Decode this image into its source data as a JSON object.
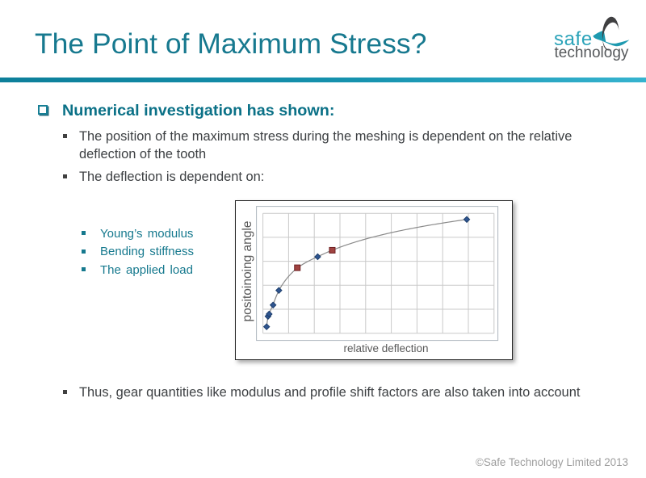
{
  "slide": {
    "title": "The Point of Maximum Stress?",
    "footer": "©Safe Technology Limited 2013"
  },
  "logo": {
    "word1": "safe",
    "word2": "technology",
    "swoosh_icon": "crescent-and-ellipse-swoosh"
  },
  "content": {
    "heading": "Numerical investigation has shown:",
    "bullets": [
      "The position of the maximum stress during the meshing is dependent on the relative deflection of the tooth",
      "The deflection is dependent on:"
    ],
    "sub_bullets": [
      "Young’s modulus",
      "Bending stiffness",
      "The applied load"
    ],
    "closing_bullet": "Thus, gear quantities like modulus and profile shift factors are also taken into account"
  },
  "chart_data": {
    "type": "line",
    "title": "",
    "xlabel": "relative deflection",
    "ylabel": "positoinoing angle",
    "xlim": [
      0,
      1
    ],
    "ylim": [
      0,
      1
    ],
    "grid": {
      "columns": 9,
      "rows": 5
    },
    "legend": "none",
    "axis_tick_labels": "none",
    "curve": "smooth logarithmic-shaped line through all points",
    "series": [
      {
        "name": "blue-diamond-points",
        "marker": "diamond",
        "fill": "#2f5590",
        "stroke": "#1e3f6d",
        "points": [
          [
            0.016,
            0.054
          ],
          [
            0.022,
            0.141
          ],
          [
            0.027,
            0.16
          ],
          [
            0.044,
            0.235
          ],
          [
            0.069,
            0.357
          ],
          [
            0.237,
            0.638
          ],
          [
            0.882,
            0.949
          ]
        ]
      },
      {
        "name": "red-square-points",
        "marker": "square",
        "fill": "#a04340",
        "stroke": "#6e2022",
        "points": [
          [
            0.149,
            0.546
          ],
          [
            0.3,
            0.692
          ]
        ]
      }
    ],
    "line_color": "#8a8a8a",
    "grid_color": "#c9c9c9",
    "plot_border_color": "#adb6bd"
  },
  "colors": {
    "title_teal": "#17798f",
    "heading_teal": "#0b7187",
    "accent_teal": "#157f99",
    "body_gray": "#3d4043",
    "footer_gray": "#9d9d9d",
    "rule_gradient_left": "#0d7f9a",
    "rule_gradient_right": "#36b3cf"
  }
}
